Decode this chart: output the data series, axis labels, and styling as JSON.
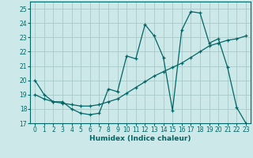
{
  "xlabel": "Humidex (Indice chaleur)",
  "ylabel": "",
  "bg_color": "#cde8e8",
  "grid_color": "#a8c8c8",
  "line_color": "#006666",
  "xlim": [
    -0.5,
    23.5
  ],
  "ylim": [
    17,
    25.5
  ],
  "yticks": [
    17,
    18,
    19,
    20,
    21,
    22,
    23,
    24,
    25
  ],
  "xticks": [
    0,
    1,
    2,
    3,
    4,
    5,
    6,
    7,
    8,
    9,
    10,
    11,
    12,
    13,
    14,
    15,
    16,
    17,
    18,
    19,
    20,
    21,
    22,
    23
  ],
  "line1_x": [
    0,
    1,
    2,
    3,
    4,
    5,
    6,
    7,
    8,
    9,
    10,
    11,
    12,
    13,
    14,
    15,
    16,
    17,
    18,
    19,
    20,
    21,
    22,
    23
  ],
  "line1_y": [
    20.0,
    19.0,
    18.5,
    18.5,
    18.0,
    17.7,
    17.6,
    17.7,
    19.4,
    19.2,
    21.7,
    21.5,
    23.9,
    23.1,
    21.6,
    17.9,
    23.5,
    24.8,
    24.7,
    22.6,
    22.9,
    20.9,
    18.1,
    17.0
  ],
  "line2_x": [
    0,
    1,
    2,
    3,
    4,
    5,
    6,
    7,
    8,
    9,
    10,
    11,
    12,
    13,
    14,
    15,
    16,
    17,
    18,
    19,
    20,
    21,
    22,
    23
  ],
  "line2_y": [
    19.0,
    18.7,
    18.5,
    18.4,
    18.3,
    18.2,
    18.2,
    18.3,
    18.5,
    18.7,
    19.1,
    19.5,
    19.9,
    20.3,
    20.6,
    20.9,
    21.2,
    21.6,
    22.0,
    22.4,
    22.6,
    22.8,
    22.9,
    23.1
  ]
}
